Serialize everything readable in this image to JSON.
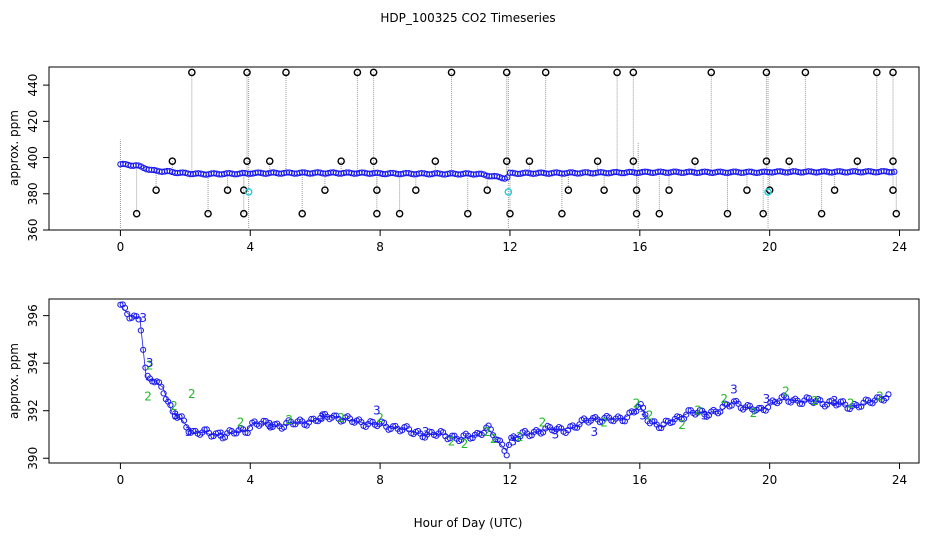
{
  "title": "HDP_100325  CO2 Timeseries",
  "xlabel": "Hour of Day (UTC)",
  "chart_data": [
    {
      "type": "scatter",
      "ylabel": "approx. ppm",
      "xlim": [
        -2.2,
        24.6
      ],
      "ylim": [
        360,
        450
      ],
      "xticks": [
        "0",
        "4",
        "8",
        "12",
        "16",
        "20",
        "24"
      ],
      "yticks": [
        "360",
        "380",
        "400",
        "420",
        "440"
      ],
      "baseline": [
        [
          0.0,
          396.3
        ],
        [
          0.5,
          395.6
        ],
        [
          1.0,
          392.8
        ],
        [
          1.5,
          392.2
        ],
        [
          2.0,
          391.3
        ],
        [
          2.5,
          390.9
        ],
        [
          3.0,
          391.0
        ],
        [
          3.5,
          391.1
        ],
        [
          3.9,
          391.2
        ],
        [
          4.0,
          391.4
        ],
        [
          6.0,
          391.5
        ],
        [
          7.8,
          391.4
        ],
        [
          8.0,
          391.2
        ],
        [
          10.0,
          391.0
        ],
        [
          11.0,
          391.0
        ],
        [
          11.9,
          388.5
        ],
        [
          12.0,
          391.3
        ],
        [
          14.0,
          391.5
        ],
        [
          15.9,
          391.8
        ],
        [
          16.0,
          391.9
        ],
        [
          18.0,
          391.9
        ],
        [
          19.9,
          391.9
        ],
        [
          20.0,
          392.1
        ],
        [
          22.0,
          392.1
        ],
        [
          23.8,
          392.2
        ]
      ],
      "high_outliers": [
        [
          2.2,
          447
        ],
        [
          3.9,
          447
        ],
        [
          5.1,
          447
        ],
        [
          7.3,
          447
        ],
        [
          7.8,
          447
        ],
        [
          10.2,
          447
        ],
        [
          11.9,
          447
        ],
        [
          13.1,
          447
        ],
        [
          15.3,
          447
        ],
        [
          15.8,
          447
        ],
        [
          18.2,
          447
        ],
        [
          19.9,
          447
        ],
        [
          21.1,
          447
        ],
        [
          23.3,
          447
        ],
        [
          23.8,
          447
        ]
      ],
      "mid_outliers": [
        [
          1.6,
          398
        ],
        [
          3.9,
          398
        ],
        [
          4.6,
          398
        ],
        [
          6.8,
          398
        ],
        [
          7.8,
          398
        ],
        [
          9.7,
          398
        ],
        [
          11.9,
          398
        ],
        [
          12.6,
          398
        ],
        [
          14.7,
          398
        ],
        [
          15.8,
          398
        ],
        [
          17.7,
          398
        ],
        [
          19.9,
          398
        ],
        [
          20.6,
          398
        ],
        [
          22.7,
          398
        ],
        [
          23.8,
          398
        ]
      ],
      "low_outliers": [
        [
          1.1,
          382
        ],
        [
          3.3,
          382
        ],
        [
          3.8,
          382
        ],
        [
          6.3,
          382
        ],
        [
          7.9,
          382
        ],
        [
          9.1,
          382
        ],
        [
          11.3,
          382
        ],
        [
          13.8,
          382
        ],
        [
          14.9,
          382
        ],
        [
          15.9,
          382
        ],
        [
          16.9,
          382
        ],
        [
          19.3,
          382
        ],
        [
          20.0,
          382
        ],
        [
          22.0,
          382
        ],
        [
          23.8,
          382
        ]
      ],
      "lowest_outliers": [
        [
          0.5,
          369
        ],
        [
          2.7,
          369
        ],
        [
          3.8,
          369
        ],
        [
          5.6,
          369
        ],
        [
          7.9,
          369
        ],
        [
          8.6,
          369
        ],
        [
          10.7,
          369
        ],
        [
          12.0,
          369
        ],
        [
          13.6,
          369
        ],
        [
          15.9,
          369
        ],
        [
          16.6,
          369
        ],
        [
          18.7,
          369
        ],
        [
          19.8,
          369
        ],
        [
          21.6,
          369
        ],
        [
          23.9,
          369
        ]
      ],
      "cyan_points": [
        [
          3.95,
          381
        ],
        [
          11.95,
          381
        ],
        [
          19.95,
          381
        ]
      ],
      "dotted_spikes": [
        [
          0.0,
          360,
          410
        ],
        [
          15.95,
          360,
          408
        ],
        [
          3.95,
          360,
          450
        ],
        [
          11.95,
          360,
          450
        ],
        [
          19.95,
          360,
          450
        ]
      ]
    },
    {
      "type": "scatter",
      "ylabel": "approx. ppm",
      "xlim": [
        -2.2,
        24.6
      ],
      "ylim": [
        389.8,
        396.7
      ],
      "xticks": [
        "0",
        "4",
        "8",
        "12",
        "16",
        "20",
        "24"
      ],
      "yticks": [
        "390",
        "392",
        "394",
        "396"
      ],
      "trend": [
        [
          0.0,
          396.4
        ],
        [
          0.3,
          396.0
        ],
        [
          0.6,
          395.9
        ],
        [
          0.8,
          393.3
        ],
        [
          1.0,
          393.3
        ],
        [
          1.3,
          393.0
        ],
        [
          1.6,
          391.9
        ],
        [
          1.9,
          391.6
        ],
        [
          2.2,
          391.1
        ],
        [
          2.5,
          391.1
        ],
        [
          2.8,
          391.0
        ],
        [
          3.2,
          391.0
        ],
        [
          3.6,
          391.1
        ],
        [
          3.9,
          391.2
        ],
        [
          4.1,
          391.5
        ],
        [
          4.5,
          391.4
        ],
        [
          5.0,
          391.4
        ],
        [
          5.5,
          391.5
        ],
        [
          6.0,
          391.6
        ],
        [
          6.5,
          391.8
        ],
        [
          7.0,
          391.6
        ],
        [
          7.5,
          391.5
        ],
        [
          8.0,
          391.4
        ],
        [
          8.5,
          391.3
        ],
        [
          9.0,
          391.1
        ],
        [
          9.5,
          391.0
        ],
        [
          10.0,
          391.0
        ],
        [
          10.5,
          390.8
        ],
        [
          11.0,
          391.0
        ],
        [
          11.3,
          391.3
        ],
        [
          11.7,
          390.6
        ],
        [
          11.9,
          390.3
        ],
        [
          12.0,
          390.8
        ],
        [
          12.5,
          391.0
        ],
        [
          13.0,
          391.2
        ],
        [
          13.5,
          391.2
        ],
        [
          14.0,
          391.3
        ],
        [
          14.5,
          391.7
        ],
        [
          15.0,
          391.6
        ],
        [
          15.5,
          391.7
        ],
        [
          15.8,
          391.9
        ],
        [
          16.0,
          392.2
        ],
        [
          16.3,
          391.6
        ],
        [
          16.7,
          391.3
        ],
        [
          17.0,
          391.6
        ],
        [
          17.5,
          391.9
        ],
        [
          18.0,
          391.9
        ],
        [
          18.5,
          392.0
        ],
        [
          18.9,
          392.4
        ],
        [
          19.3,
          392.1
        ],
        [
          19.7,
          392.0
        ],
        [
          20.0,
          392.3
        ],
        [
          20.5,
          392.5
        ],
        [
          21.0,
          392.4
        ],
        [
          21.5,
          392.4
        ],
        [
          22.0,
          392.3
        ],
        [
          22.5,
          392.2
        ],
        [
          23.0,
          392.3
        ],
        [
          23.5,
          392.6
        ],
        [
          23.7,
          392.6
        ]
      ],
      "green_labels": [
        [
          0.85,
          392.6
        ],
        [
          0.9,
          393.9
        ],
        [
          1.65,
          392.2
        ],
        [
          2.2,
          392.7
        ],
        [
          3.7,
          391.5
        ],
        [
          5.2,
          391.6
        ],
        [
          6.8,
          391.7
        ],
        [
          8.0,
          391.7
        ],
        [
          10.2,
          390.7
        ],
        [
          10.6,
          390.6
        ],
        [
          11.3,
          391.1
        ],
        [
          11.5,
          390.8
        ],
        [
          12.3,
          390.9
        ],
        [
          13.0,
          391.5
        ],
        [
          14.9,
          391.5
        ],
        [
          15.9,
          392.3
        ],
        [
          16.3,
          391.8
        ],
        [
          17.3,
          391.4
        ],
        [
          17.8,
          392.0
        ],
        [
          18.6,
          392.5
        ],
        [
          19.5,
          391.9
        ],
        [
          20.5,
          392.8
        ],
        [
          21.4,
          392.4
        ],
        [
          22.5,
          392.3
        ],
        [
          23.4,
          392.6
        ]
      ],
      "label_text": "2",
      "blue_labels": [
        [
          0.7,
          395.9
        ],
        [
          0.9,
          394.0
        ],
        [
          1.7,
          391.8
        ],
        [
          2.1,
          391.1
        ],
        [
          3.1,
          391.0
        ],
        [
          4.6,
          391.4
        ],
        [
          6.2,
          391.7
        ],
        [
          7.9,
          392.0
        ],
        [
          9.4,
          391.1
        ],
        [
          12.1,
          390.7
        ],
        [
          13.4,
          391.0
        ],
        [
          14.6,
          391.1
        ],
        [
          16.1,
          391.8
        ],
        [
          18.0,
          391.8
        ],
        [
          18.9,
          392.9
        ],
        [
          19.9,
          392.5
        ],
        [
          22.0,
          392.4
        ]
      ],
      "blue_label_text": "3"
    }
  ]
}
